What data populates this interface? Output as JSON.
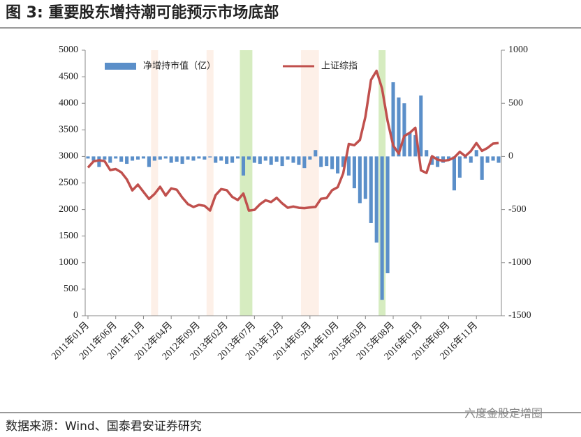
{
  "chart_data": {
    "type": "bar_line",
    "title": "图 3:  重要股东增持潮可能预示市场底部",
    "source": "数据来源：Wind、国泰君安证券研究",
    "watermark": "六度金股定增圈",
    "categories": [
      "2011年01月",
      null,
      null,
      null,
      null,
      "2011年06月",
      null,
      null,
      null,
      null,
      "2011年11月",
      null,
      null,
      null,
      null,
      "2012年04月",
      null,
      null,
      null,
      null,
      "2012年09月",
      null,
      null,
      null,
      null,
      "2013年02月",
      null,
      null,
      null,
      null,
      "2013年07月",
      null,
      null,
      null,
      null,
      "2013年12月",
      null,
      null,
      null,
      null,
      "2014年05月",
      null,
      null,
      null,
      null,
      "2014年10月",
      null,
      null,
      null,
      null,
      "2015年03月",
      null,
      null,
      null,
      null,
      "2015年08月",
      null,
      null,
      null,
      null,
      "2016年01月",
      null,
      null,
      null,
      null,
      "2016年06月",
      null,
      null,
      null,
      null,
      "2016年11月",
      null,
      null,
      null,
      null
    ],
    "series": [
      {
        "name": "净增持市值（亿）",
        "kind": "bar",
        "axis": "y2",
        "color": "#5b8fc9",
        "values": [
          -20,
          -40,
          -100,
          -30,
          -60,
          -20,
          -50,
          -70,
          -40,
          -30,
          -20,
          -100,
          -40,
          -30,
          -20,
          -60,
          -50,
          -70,
          -30,
          -40,
          -20,
          -30,
          -10,
          -60,
          -40,
          -70,
          -60,
          -20,
          -180,
          -30,
          -60,
          -70,
          -40,
          -80,
          -50,
          -90,
          -30,
          -60,
          -80,
          -110,
          -30,
          60,
          -100,
          -90,
          -120,
          -160,
          -100,
          -180,
          -300,
          -440,
          -400,
          -627,
          -811,
          -1350,
          -1100,
          698,
          555,
          500,
          230,
          200,
          573,
          60,
          -80,
          -100,
          -60,
          -40,
          -320,
          -200,
          -20,
          -60,
          60,
          -220,
          -60,
          -40,
          -60
        ]
      },
      {
        "name": "上证综指",
        "kind": "line",
        "axis": "y",
        "color": "#c0504d",
        "values": [
          2790,
          2905,
          2928,
          2911,
          2743,
          2762,
          2701,
          2568,
          2359,
          2468,
          2333,
          2199,
          2292,
          2428,
          2263,
          2397,
          2373,
          2225,
          2103,
          2047,
          2086,
          2069,
          1980,
          2269,
          2385,
          2365,
          2237,
          2178,
          2301,
          1979,
          1994,
          2098,
          2175,
          2141,
          2220,
          2116,
          2033,
          2056,
          2033,
          2026,
          2039,
          2048,
          2202,
          2217,
          2364,
          2420,
          2683,
          3235,
          3210,
          3310,
          3748,
          4441,
          4612,
          4277,
          3664,
          3206,
          3053,
          3383,
          3445,
          3539,
          2738,
          2688,
          3004,
          2938,
          2917,
          2930,
          2979,
          3085,
          3005,
          3100,
          3250,
          3104,
          3159,
          3242,
          3250
        ]
      }
    ],
    "bands": [
      {
        "from": 12,
        "to": 12,
        "color": "#fdf0e8"
      },
      {
        "from": 22,
        "to": 22,
        "color": "#fdf0e8"
      },
      {
        "from": 28,
        "to": 29,
        "color": "#d6ecc0"
      },
      {
        "from": 39,
        "to": 41,
        "color": "#fdf0e8"
      },
      {
        "from": 53,
        "to": 53,
        "color": "#d6ecc0"
      }
    ],
    "ylim": [
      0,
      5000
    ],
    "yticks": [
      0,
      500,
      1000,
      1500,
      2000,
      2500,
      3000,
      3500,
      4000,
      4500,
      5000
    ],
    "y2lim": [
      -1500,
      1000
    ],
    "y2ticks": [
      -1500,
      -1000,
      -500,
      0,
      500,
      1000
    ],
    "legend": "top-left"
  }
}
